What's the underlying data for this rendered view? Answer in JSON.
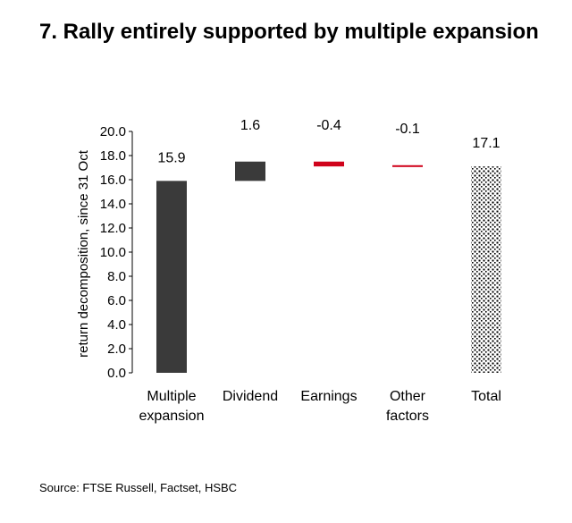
{
  "title": "7. Rally entirely supported by multiple expansion",
  "source": "Source: FTSE Russell, Factset, HSBC",
  "colors": {
    "positive": "#3a3a3a",
    "negative": "#d0021b",
    "total_pattern": "#000000",
    "axis": "#000000"
  },
  "chart_data": {
    "type": "bar",
    "subtype": "waterfall",
    "title": "",
    "xlabel": "",
    "ylabel": "return decomposition, since 31 Oct",
    "ylim": [
      0,
      20
    ],
    "ytick_step": 2,
    "grid": false,
    "legend": "none",
    "categories": [
      {
        "lines": [
          "Multiple",
          "expansion"
        ],
        "value": 15.9,
        "label": "15.9",
        "start": 0,
        "kind": "increase"
      },
      {
        "lines": [
          "Dividend"
        ],
        "value": 1.6,
        "label": "1.6",
        "start": 15.9,
        "kind": "increase"
      },
      {
        "lines": [
          "Earnings"
        ],
        "value": -0.4,
        "label": "-0.4",
        "start": 17.5,
        "kind": "decrease"
      },
      {
        "lines": [
          "Other",
          "factors"
        ],
        "value": -0.1,
        "label": "-0.1",
        "start": 17.2,
        "kind": "decrease"
      },
      {
        "lines": [
          "Total"
        ],
        "value": 17.1,
        "label": "17.1",
        "start": 0,
        "kind": "total"
      }
    ]
  }
}
